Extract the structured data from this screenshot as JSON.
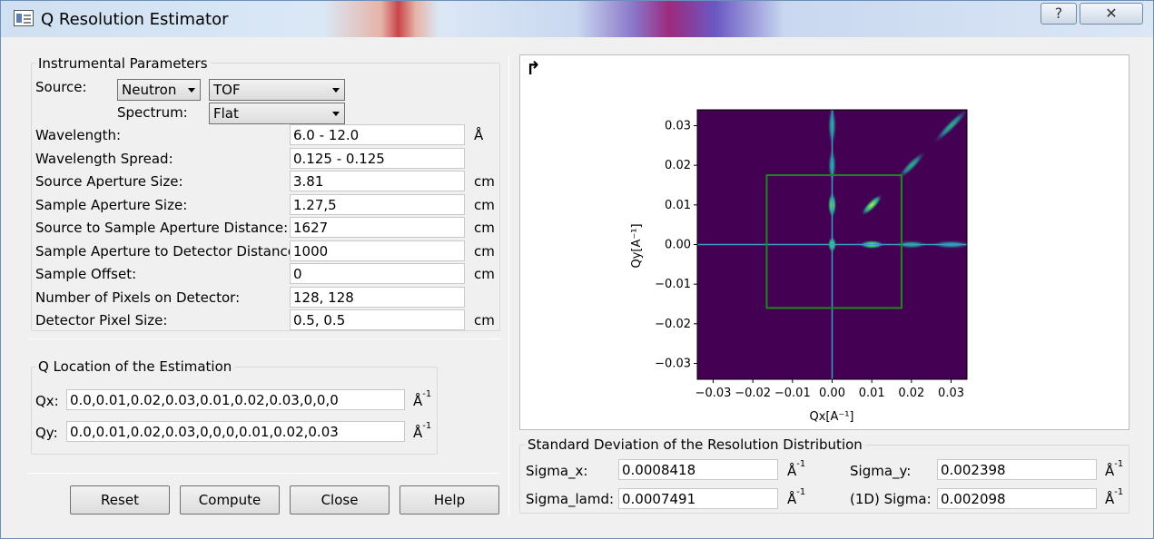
{
  "window": {
    "title": "Q Resolution Estimator",
    "help_glyph": "?",
    "close_glyph": "✕"
  },
  "instrument": {
    "group_title": "Instrumental Parameters",
    "source_label": "Source:",
    "source_value": "Neutron",
    "mode_value": "TOF",
    "spectrum_label": "Spectrum:",
    "spectrum_value": "Flat",
    "rows": [
      {
        "label": "Wavelength:",
        "value": "6.0 - 12.0",
        "unit": "Å"
      },
      {
        "label": "Wavelength Spread:",
        "value": "0.125 - 0.125",
        "unit": ""
      },
      {
        "label": "Source Aperture Size:",
        "value": "3.81",
        "unit": "cm"
      },
      {
        "label": "Sample Aperture Size:",
        "value": "1.27,5",
        "unit": "cm"
      },
      {
        "label": "Source to Sample Aperture Distance:",
        "value": "1627",
        "unit": "cm"
      },
      {
        "label": "Sample Aperture to Detector Distance:",
        "value": "1000",
        "unit": "cm"
      },
      {
        "label": "Sample Offset:",
        "value": "0",
        "unit": "cm"
      },
      {
        "label": "Number of Pixels on Detector:",
        "value": "128, 128",
        "unit": ""
      },
      {
        "label": "Detector Pixel Size:",
        "value": "0.5, 0.5",
        "unit": "cm"
      }
    ]
  },
  "qlocation": {
    "group_title": "Q Location of the Estimation",
    "qx_label": "Qx:",
    "qx_value": "0.0,0.01,0.02,0.03,0.01,0.02,0.03,0,0,0",
    "qy_label": "Qy:",
    "qy_value": "0.0,0.01,0.02,0.03,0,0,0,0.01,0.02,0.03",
    "unit_base": "Å",
    "unit_exp": "-1"
  },
  "buttons": {
    "reset": "Reset",
    "compute": "Compute",
    "close": "Close",
    "help": "Help"
  },
  "plot": {
    "toolbar_glyph": "↱",
    "chart_data": {
      "type": "heatmap",
      "xlabel": "Qx[A⁻¹]",
      "ylabel": "Qy[A⁻¹]",
      "xlim": [
        -0.034,
        0.034
      ],
      "ylim": [
        -0.034,
        0.034
      ],
      "xticks": [
        "−0.03",
        "−0.02",
        "−0.01",
        "0.00",
        "0.01",
        "0.02",
        "0.03"
      ],
      "yticks": [
        "0.03",
        "0.02",
        "0.01",
        "0.00",
        "−0.01",
        "−0.02",
        "−0.03"
      ],
      "xtick_values": [
        -0.03,
        -0.02,
        -0.01,
        0.0,
        0.01,
        0.02,
        0.03
      ],
      "ytick_values": [
        0.03,
        0.02,
        0.01,
        0.0,
        -0.01,
        -0.02,
        -0.03
      ],
      "colors": {
        "background": "#440154",
        "peak_mid": "#2a788e",
        "peak_high": "#fde725",
        "box": "#1a8a1a",
        "crosshair": "#3e9ac8"
      },
      "peaks": [
        {
          "qx": 0.0,
          "qy": 0.0
        },
        {
          "qx": 0.01,
          "qy": 0.01
        },
        {
          "qx": 0.02,
          "qy": 0.02
        },
        {
          "qx": 0.03,
          "qy": 0.03
        },
        {
          "qx": 0.01,
          "qy": 0.0
        },
        {
          "qx": 0.02,
          "qy": 0.0
        },
        {
          "qx": 0.03,
          "qy": 0.0
        },
        {
          "qx": 0.0,
          "qy": 0.01
        },
        {
          "qx": 0.0,
          "qy": 0.02
        },
        {
          "qx": 0.0,
          "qy": 0.03
        }
      ],
      "detector_box": {
        "qx_min": -0.0165,
        "qx_max": 0.0175,
        "qy_min": -0.016,
        "qy_max": 0.0175
      }
    }
  },
  "stddev": {
    "group_title": "Standard Deviation of the Resolution Distribution",
    "sigma_x_label": "Sigma_x:",
    "sigma_x_value": "0.0008418",
    "sigma_y_label": "Sigma_y:",
    "sigma_y_value": "0.002398",
    "sigma_lamd_label": "Sigma_lamd:",
    "sigma_lamd_value": "0.0007491",
    "sigma_1d_label": "(1D) Sigma:",
    "sigma_1d_value": "0.002098"
  }
}
